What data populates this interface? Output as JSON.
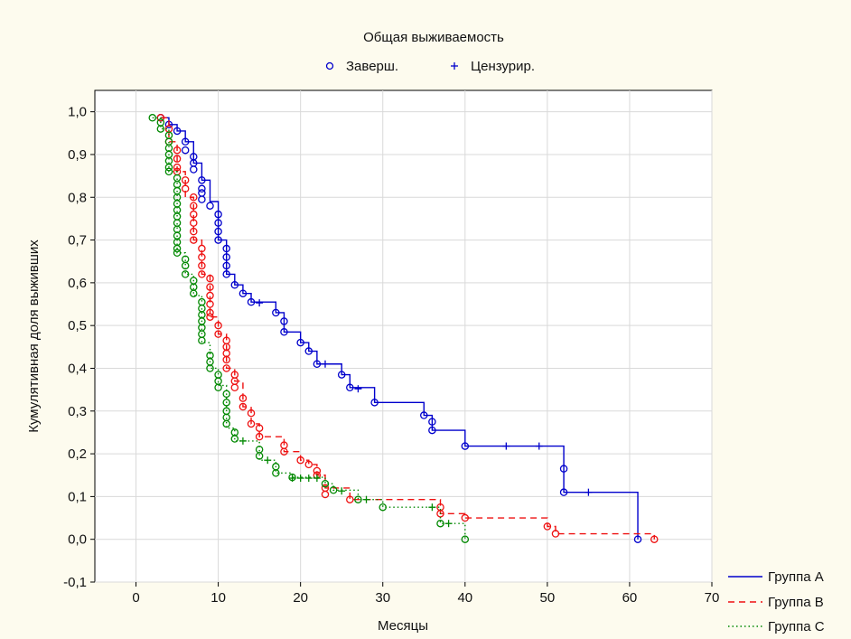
{
  "chart_data": {
    "type": "line",
    "title": "Общая выживаемость",
    "xlabel": "Месяцы",
    "ylabel": "Кумулятивная доля выживших",
    "xlim": [
      -5,
      70
    ],
    "ylim": [
      -0.1,
      1.05
    ],
    "xticks": [
      0,
      10,
      20,
      30,
      40,
      50,
      60,
      70
    ],
    "xtick_labels": [
      "0",
      "10",
      "20",
      "30",
      "40",
      "50",
      "60",
      "70"
    ],
    "yticks": [
      -0.1,
      0,
      0.1,
      0.2,
      0.3,
      0.4,
      0.5,
      0.6,
      0.7,
      0.8,
      0.9,
      1.0
    ],
    "ytick_labels": [
      "-0,1",
      "0,0",
      "0,1",
      "0,2",
      "0,3",
      "0,4",
      "0,5",
      "0,6",
      "0,7",
      "0,8",
      "0,9",
      "1,0"
    ],
    "grid": true,
    "marker_legend": [
      {
        "symbol": "o",
        "label": "Заверш."
      },
      {
        "symbol": "+",
        "label": "Цензурир."
      }
    ],
    "series": [
      {
        "name": "Группа A",
        "color": "#0000cc",
        "dash": "solid",
        "steps": [
          [
            3,
            0.986
          ],
          [
            4,
            0.97
          ],
          [
            5,
            0.955
          ],
          [
            6,
            0.93
          ],
          [
            7,
            0.88
          ],
          [
            8,
            0.84
          ],
          [
            9,
            0.79
          ],
          [
            10,
            0.7
          ],
          [
            11,
            0.62
          ],
          [
            12,
            0.595
          ],
          [
            13,
            0.575
          ],
          [
            14,
            0.555
          ],
          [
            17,
            0.53
          ],
          [
            18,
            0.485
          ],
          [
            20,
            0.46
          ],
          [
            21,
            0.44
          ],
          [
            22,
            0.41
          ],
          [
            25,
            0.385
          ],
          [
            26,
            0.355
          ],
          [
            29,
            0.32
          ],
          [
            35,
            0.29
          ],
          [
            36,
            0.255
          ],
          [
            40,
            0.218
          ],
          [
            52,
            0.11
          ],
          [
            61,
            0.0
          ]
        ],
        "events": [
          [
            3,
            0.986
          ],
          [
            4,
            0.97
          ],
          [
            5,
            0.955
          ],
          [
            6,
            0.93
          ],
          [
            6,
            0.91
          ],
          [
            7,
            0.895
          ],
          [
            7,
            0.88
          ],
          [
            7,
            0.865
          ],
          [
            8,
            0.84
          ],
          [
            8,
            0.82
          ],
          [
            8,
            0.81
          ],
          [
            8,
            0.795
          ],
          [
            9,
            0.78
          ],
          [
            10,
            0.76
          ],
          [
            10,
            0.74
          ],
          [
            10,
            0.72
          ],
          [
            10,
            0.7
          ],
          [
            11,
            0.68
          ],
          [
            11,
            0.66
          ],
          [
            11,
            0.64
          ],
          [
            11,
            0.62
          ],
          [
            12,
            0.595
          ],
          [
            13,
            0.575
          ],
          [
            14,
            0.555
          ],
          [
            17,
            0.53
          ],
          [
            18,
            0.51
          ],
          [
            18,
            0.485
          ],
          [
            20,
            0.46
          ],
          [
            21,
            0.44
          ],
          [
            22,
            0.41
          ],
          [
            25,
            0.385
          ],
          [
            26,
            0.355
          ],
          [
            29,
            0.32
          ],
          [
            35,
            0.29
          ],
          [
            36,
            0.275
          ],
          [
            36,
            0.255
          ],
          [
            40,
            0.218
          ],
          [
            52,
            0.165
          ],
          [
            52,
            0.11
          ],
          [
            61,
            0.0
          ]
        ],
        "censored": [
          [
            15,
            0.553
          ],
          [
            23,
            0.41
          ],
          [
            27,
            0.352
          ],
          [
            45,
            0.218
          ],
          [
            49,
            0.218
          ],
          [
            55,
            0.11
          ]
        ]
      },
      {
        "name": "Группа B",
        "color": "#ee1111",
        "dash": "dashed",
        "steps": [
          [
            3,
            0.986
          ],
          [
            4,
            0.93
          ],
          [
            5,
            0.86
          ],
          [
            6,
            0.8
          ],
          [
            7,
            0.7
          ],
          [
            8,
            0.62
          ],
          [
            9,
            0.52
          ],
          [
            10,
            0.48
          ],
          [
            11,
            0.4
          ],
          [
            12,
            0.37
          ],
          [
            13,
            0.31
          ],
          [
            14,
            0.27
          ],
          [
            15,
            0.24
          ],
          [
            18,
            0.205
          ],
          [
            20,
            0.185
          ],
          [
            21,
            0.175
          ],
          [
            22,
            0.15
          ],
          [
            23,
            0.12
          ],
          [
            26,
            0.093
          ],
          [
            37,
            0.06
          ],
          [
            40,
            0.05
          ],
          [
            50,
            0.03
          ],
          [
            51,
            0.013
          ],
          [
            63,
            0.0
          ]
        ],
        "events": [
          [
            3,
            0.986
          ],
          [
            4,
            0.96
          ],
          [
            4,
            0.93
          ],
          [
            5,
            0.91
          ],
          [
            5,
            0.89
          ],
          [
            5,
            0.87
          ],
          [
            5,
            0.86
          ],
          [
            6,
            0.84
          ],
          [
            6,
            0.82
          ],
          [
            7,
            0.8
          ],
          [
            7,
            0.78
          ],
          [
            7,
            0.76
          ],
          [
            7,
            0.74
          ],
          [
            7,
            0.72
          ],
          [
            7,
            0.7
          ],
          [
            8,
            0.68
          ],
          [
            8,
            0.66
          ],
          [
            8,
            0.64
          ],
          [
            8,
            0.62
          ],
          [
            9,
            0.61
          ],
          [
            9,
            0.59
          ],
          [
            9,
            0.57
          ],
          [
            9,
            0.55
          ],
          [
            9,
            0.53
          ],
          [
            9,
            0.52
          ],
          [
            10,
            0.5
          ],
          [
            10,
            0.48
          ],
          [
            11,
            0.465
          ],
          [
            11,
            0.45
          ],
          [
            11,
            0.435
          ],
          [
            11,
            0.42
          ],
          [
            11,
            0.4
          ],
          [
            12,
            0.385
          ],
          [
            12,
            0.37
          ],
          [
            12,
            0.355
          ],
          [
            13,
            0.33
          ],
          [
            13,
            0.31
          ],
          [
            14,
            0.295
          ],
          [
            14,
            0.27
          ],
          [
            15,
            0.26
          ],
          [
            15,
            0.24
          ],
          [
            18,
            0.22
          ],
          [
            18,
            0.205
          ],
          [
            20,
            0.185
          ],
          [
            21,
            0.175
          ],
          [
            22,
            0.16
          ],
          [
            22,
            0.15
          ],
          [
            23,
            0.12
          ],
          [
            23,
            0.105
          ],
          [
            26,
            0.093
          ],
          [
            37,
            0.075
          ],
          [
            37,
            0.06
          ],
          [
            40,
            0.05
          ],
          [
            50,
            0.03
          ],
          [
            51,
            0.013
          ],
          [
            63,
            0.0
          ]
        ],
        "censored": []
      },
      {
        "name": "Группа C",
        "color": "#008800",
        "dash": "dotted",
        "steps": [
          [
            2,
            0.986
          ],
          [
            3,
            0.96
          ],
          [
            4,
            0.86
          ],
          [
            5,
            0.67
          ],
          [
            6,
            0.62
          ],
          [
            7,
            0.57
          ],
          [
            8,
            0.46
          ],
          [
            9,
            0.4
          ],
          [
            10,
            0.36
          ],
          [
            11,
            0.26
          ],
          [
            12,
            0.23
          ],
          [
            15,
            0.185
          ],
          [
            17,
            0.155
          ],
          [
            19,
            0.145
          ],
          [
            23,
            0.13
          ],
          [
            24,
            0.115
          ],
          [
            27,
            0.093
          ],
          [
            30,
            0.075
          ],
          [
            37,
            0.037
          ],
          [
            40,
            0.0
          ]
        ],
        "events": [
          [
            2,
            0.986
          ],
          [
            3,
            0.975
          ],
          [
            3,
            0.96
          ],
          [
            4,
            0.945
          ],
          [
            4,
            0.93
          ],
          [
            4,
            0.915
          ],
          [
            4,
            0.9
          ],
          [
            4,
            0.885
          ],
          [
            4,
            0.87
          ],
          [
            4,
            0.86
          ],
          [
            5,
            0.845
          ],
          [
            5,
            0.83
          ],
          [
            5,
            0.815
          ],
          [
            5,
            0.8
          ],
          [
            5,
            0.785
          ],
          [
            5,
            0.77
          ],
          [
            5,
            0.755
          ],
          [
            5,
            0.74
          ],
          [
            5,
            0.725
          ],
          [
            5,
            0.71
          ],
          [
            5,
            0.695
          ],
          [
            5,
            0.68
          ],
          [
            5,
            0.67
          ],
          [
            6,
            0.655
          ],
          [
            6,
            0.64
          ],
          [
            6,
            0.62
          ],
          [
            7,
            0.605
          ],
          [
            7,
            0.59
          ],
          [
            7,
            0.575
          ],
          [
            8,
            0.555
          ],
          [
            8,
            0.54
          ],
          [
            8,
            0.525
          ],
          [
            8,
            0.51
          ],
          [
            8,
            0.495
          ],
          [
            8,
            0.48
          ],
          [
            8,
            0.465
          ],
          [
            9,
            0.43
          ],
          [
            9,
            0.415
          ],
          [
            9,
            0.4
          ],
          [
            10,
            0.385
          ],
          [
            10,
            0.37
          ],
          [
            10,
            0.355
          ],
          [
            11,
            0.34
          ],
          [
            11,
            0.32
          ],
          [
            11,
            0.3
          ],
          [
            11,
            0.285
          ],
          [
            11,
            0.27
          ],
          [
            12,
            0.25
          ],
          [
            12,
            0.235
          ],
          [
            15,
            0.21
          ],
          [
            15,
            0.195
          ],
          [
            17,
            0.17
          ],
          [
            17,
            0.155
          ],
          [
            19,
            0.145
          ],
          [
            23,
            0.13
          ],
          [
            24,
            0.115
          ],
          [
            27,
            0.093
          ],
          [
            30,
            0.075
          ],
          [
            37,
            0.037
          ],
          [
            40,
            0.0
          ]
        ],
        "censored": [
          [
            13,
            0.23
          ],
          [
            16,
            0.185
          ],
          [
            19,
            0.143
          ],
          [
            20,
            0.143
          ],
          [
            21,
            0.143
          ],
          [
            22,
            0.143
          ],
          [
            25,
            0.113
          ],
          [
            28,
            0.093
          ],
          [
            36,
            0.075
          ],
          [
            38,
            0.037
          ]
        ]
      }
    ]
  }
}
